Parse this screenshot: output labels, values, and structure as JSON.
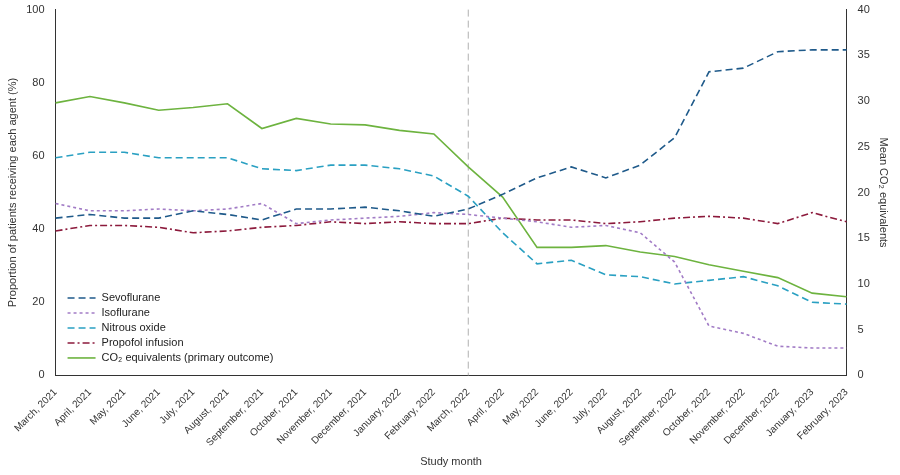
{
  "chart_data": {
    "type": "line",
    "x_label": "Study month",
    "y_label": "Proportion of patients receiving each agent (%)",
    "y2_label": "Mean CO₂ equivalents",
    "categories": [
      "March, 2021",
      "April, 2021",
      "May, 2021",
      "June, 2021",
      "July, 2021",
      "August, 2021",
      "September, 2021",
      "October, 2021",
      "November, 2021",
      "December, 2021",
      "January, 2022",
      "February, 2022",
      "March, 2022",
      "April, 2022",
      "May, 2022",
      "June, 2022",
      "July, 2022",
      "August, 2022",
      "September, 2022",
      "October, 2022",
      "November, 2022",
      "December, 2022",
      "January, 2023",
      "February, 2023"
    ],
    "ylim": [
      0,
      100
    ],
    "yticks": [
      0,
      20,
      40,
      60,
      80,
      100
    ],
    "y2lim": [
      0,
      40
    ],
    "y2ticks": [
      0,
      5,
      10,
      15,
      20,
      25,
      30,
      35,
      40
    ],
    "grid": false,
    "legend": "lower left",
    "annotations": [
      {
        "type": "vline",
        "x": "March, 2022",
        "line_style": "dashed",
        "color": "#b0b0b0"
      }
    ],
    "series": [
      {
        "name": "Sevoflurane",
        "color": "#1f5a8a",
        "line_style": "dashed",
        "marker": "none",
        "values": [
          43,
          44,
          43,
          43,
          45,
          44,
          42.5,
          45.5,
          45.5,
          46,
          45,
          43.5,
          45.5,
          49.5,
          54,
          57,
          54,
          57.5,
          65,
          83,
          84,
          88.5,
          89,
          89
        ]
      },
      {
        "name": "Isoflurane",
        "color": "#a27cc6",
        "line_style": "dotted",
        "marker": "none",
        "values": [
          47,
          45,
          45,
          45.5,
          45,
          45.5,
          47,
          41.5,
          42.5,
          43,
          43.5,
          44.5,
          44,
          43,
          42,
          40.5,
          41,
          39,
          31,
          13.5,
          11.5,
          8,
          7.5,
          7.5
        ]
      },
      {
        "name": "Nitrous oxide",
        "color": "#2aa0c2",
        "line_style": "dashed",
        "marker": "none",
        "values": [
          59.5,
          61,
          61,
          59.5,
          59.5,
          59.5,
          56.5,
          56,
          57.5,
          57.5,
          56.5,
          54.5,
          49,
          39,
          30.5,
          31.5,
          27.5,
          27,
          25,
          26,
          27,
          24.5,
          20,
          19.5
        ]
      },
      {
        "name": "Propofol infusion",
        "color": "#8c1a3c",
        "line_style": "dashdot",
        "marker": "none",
        "values": [
          39.5,
          41,
          41,
          40.5,
          39,
          39.5,
          40.5,
          41,
          42,
          41.5,
          42,
          41.5,
          41.5,
          43,
          42.5,
          42.5,
          41.5,
          42,
          43,
          43.5,
          43,
          41.5,
          44.5,
          42
        ]
      },
      {
        "name": "CO₂ equivalents (primary outcome)",
        "color": "#6db33f",
        "line_style": "solid",
        "marker": "none",
        "axis": "y2",
        "values": [
          29.8,
          30.5,
          29.8,
          29,
          29.3,
          29.7,
          27,
          28.1,
          27.5,
          27.4,
          26.8,
          26.4,
          22.8,
          19.5,
          14,
          14,
          14.2,
          13.5,
          13,
          12.1,
          11.4,
          10.7,
          9,
          8.6
        ]
      }
    ]
  }
}
